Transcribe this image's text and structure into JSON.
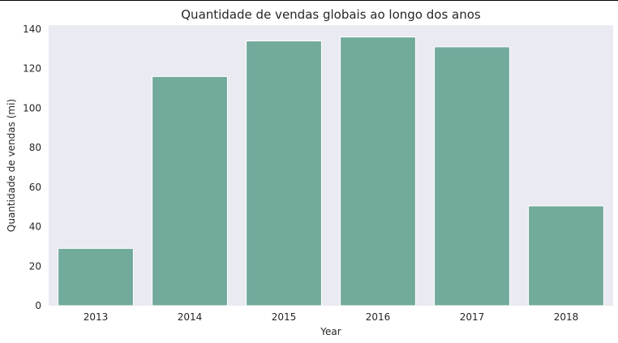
{
  "chart_data": {
    "type": "bar",
    "title": "Quantidade de vendas globais ao longo dos anos",
    "xlabel": "Year",
    "ylabel": "Quantidade de vendas (mi)",
    "categories": [
      "2013",
      "2014",
      "2015",
      "2016",
      "2017",
      "2018"
    ],
    "values": [
      29,
      116,
      134,
      136,
      131,
      50.5
    ],
    "ylim": [
      0,
      142
    ],
    "yticks": [
      0,
      20,
      40,
      60,
      80,
      100,
      120,
      140
    ],
    "grid": false,
    "legend": "none",
    "bar_color": "#72aa9c",
    "plot_background": "#eaeaf2"
  }
}
